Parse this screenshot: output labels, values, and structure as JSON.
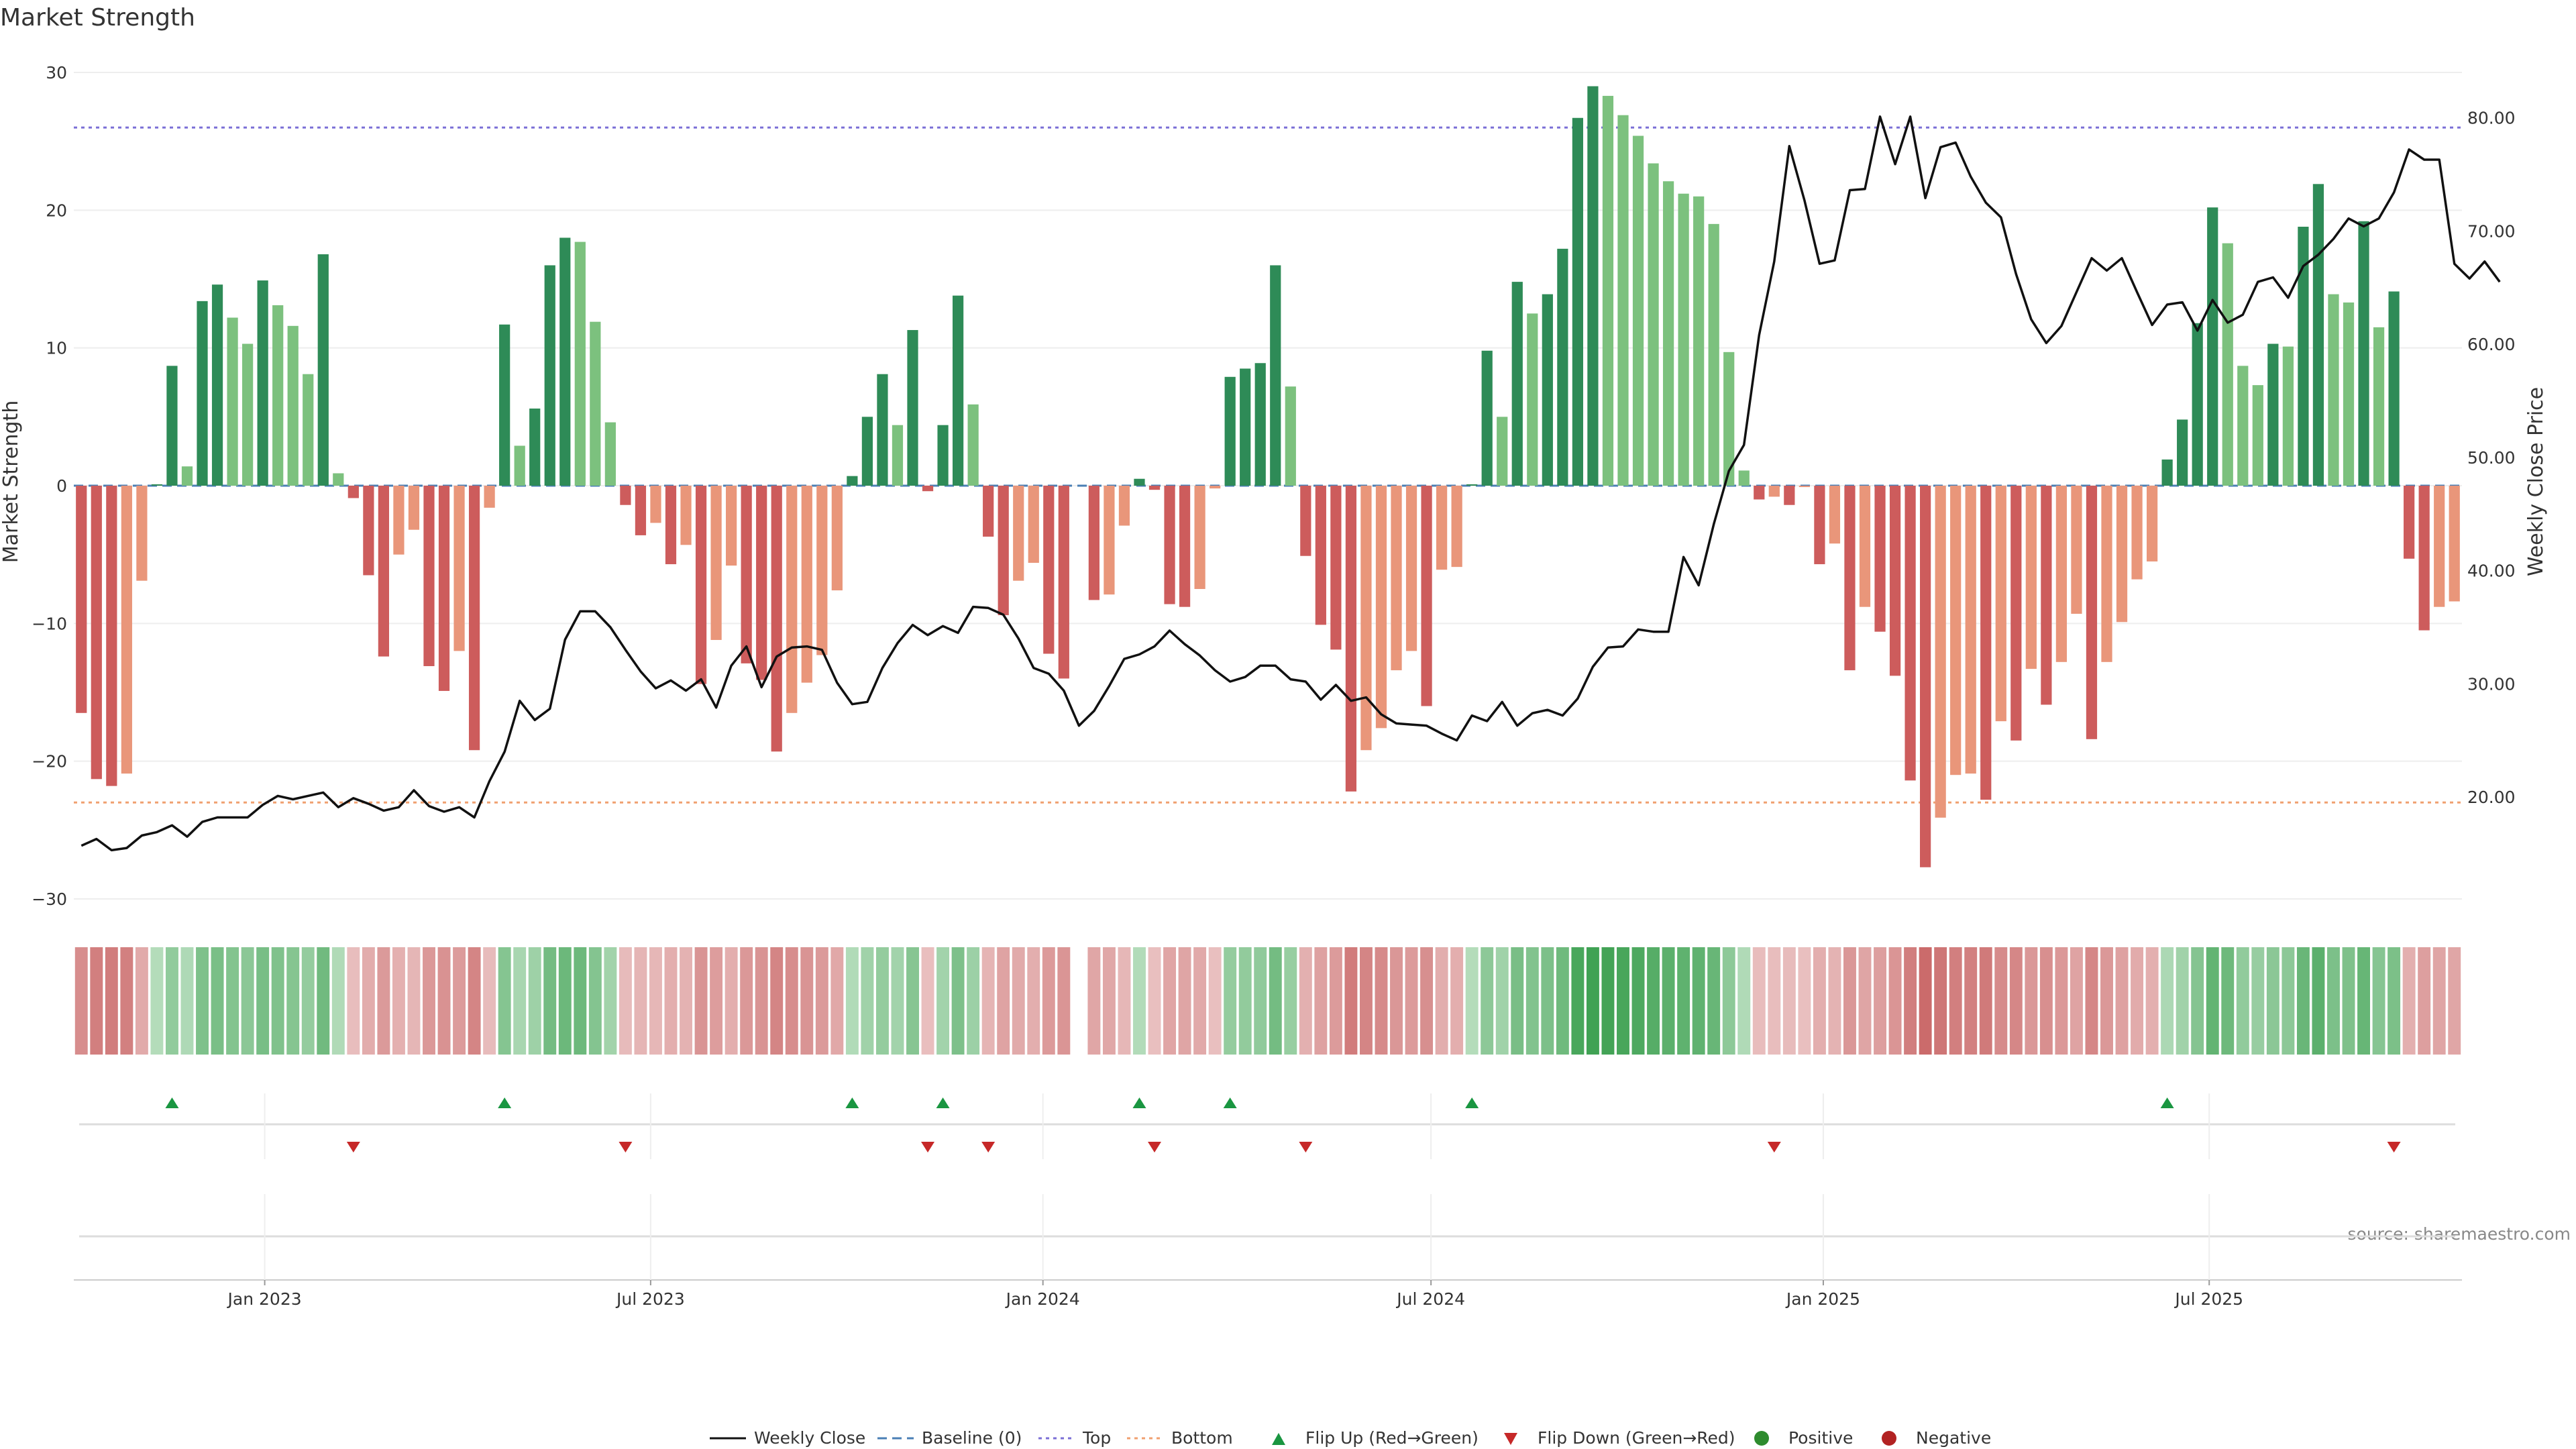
{
  "chart_data": {
    "title": "Market Strength",
    "type": "bar+line",
    "ylabel_left": "Market Strength",
    "ylabel_right": "Weekly Close Price",
    "ylim_left": [
      -30,
      30
    ],
    "ylim_right": [
      11,
      84
    ],
    "yticks_left": [
      30,
      20,
      10,
      0,
      -10,
      -20,
      -30
    ],
    "yticks_right": [
      "80.00",
      "70.00",
      "60.00",
      "50.00",
      "40.00",
      "30.00",
      "20.00"
    ],
    "yticks_right_values": [
      80,
      70,
      60,
      50,
      40,
      30,
      20
    ],
    "x_start": "2022-10-07",
    "x_end": "2025-10-24",
    "xticks": [
      {
        "date": "2023-01-01",
        "label": "Jan 2023"
      },
      {
        "date": "2023-07-01",
        "label": "Jul 2023"
      },
      {
        "date": "2024-01-01",
        "label": "Jan 2024"
      },
      {
        "date": "2024-07-01",
        "label": "Jul 2024"
      },
      {
        "date": "2025-01-01",
        "label": "Jan 2025"
      },
      {
        "date": "2025-07-01",
        "label": "Jul 2025"
      }
    ],
    "top_line": 26,
    "bottom_line": -23,
    "weekly_close": [
      15.7,
      16.3,
      15.3,
      15.5,
      16.6,
      16.9,
      17.5,
      16.5,
      17.8,
      18.2,
      18.2,
      18.2,
      19.3,
      20.1,
      19.8,
      20.1,
      20.4,
      19.1,
      19.9,
      19.4,
      18.8,
      19.1,
      20.6,
      19.2,
      18.7,
      19.1,
      18.2,
      21.4,
      24.0,
      28.5,
      26.8,
      27.8,
      33.9,
      36.4,
      36.4,
      35.0,
      33.0,
      31.1,
      29.6,
      30.3,
      29.4,
      30.4,
      27.9,
      31.6,
      33.3,
      29.7,
      32.4,
      33.2,
      33.3,
      33.0,
      30.1,
      28.2,
      28.4,
      31.4,
      33.6,
      35.2,
      34.3,
      35.1,
      34.5,
      36.8,
      36.7,
      36.1,
      34.0,
      31.4,
      30.9,
      29.4,
      26.3,
      27.6,
      29.8,
      32.2,
      32.6,
      33.3,
      34.7,
      33.5,
      32.5,
      31.2,
      30.2,
      30.6,
      31.6,
      31.6,
      30.4,
      30.2,
      28.6,
      29.9,
      28.5,
      28.8,
      27.3,
      26.5,
      26.4,
      26.3,
      25.6,
      25.0,
      27.2,
      26.7,
      28.4,
      26.3,
      27.4,
      27.7,
      27.2,
      28.7,
      31.5,
      33.2,
      33.3,
      34.8,
      34.6,
      34.6,
      41.2,
      38.7,
      44.1,
      48.8,
      51.1,
      60.8,
      67.3,
      77.5,
      72.7,
      67.1,
      67.4,
      73.6,
      73.7,
      80.1,
      75.9,
      80.1,
      72.9,
      77.4,
      77.8,
      74.8,
      72.5,
      71.2,
      66.2,
      62.2,
      60.1,
      61.6,
      64.6,
      67.6,
      66.5,
      67.6,
      64.6,
      61.7,
      63.5,
      63.7,
      61.2,
      63.9,
      61.9,
      62.6,
      65.5,
      65.9,
      64.1,
      66.9,
      67.9,
      69.3,
      71.1,
      70.4,
      71.1,
      73.4,
      77.2,
      76.3,
      76.3,
      67.1,
      65.8,
      67.3,
      65.5
    ],
    "strength": [
      -16.5,
      -21.3,
      -21.8,
      -20.9,
      -6.9,
      0.1,
      8.7,
      1.4,
      13.4,
      14.6,
      12.2,
      10.3,
      14.9,
      13.1,
      11.6,
      8.1,
      16.8,
      0.9,
      -0.9,
      -6.5,
      -12.4,
      -5.0,
      -3.2,
      -13.1,
      -14.9,
      -12.0,
      -19.2,
      -1.6,
      11.7,
      2.9,
      5.6,
      16.0,
      18.0,
      17.7,
      11.9,
      4.6,
      -1.4,
      -3.6,
      -2.7,
      -5.7,
      -4.3,
      -14.4,
      -11.2,
      -5.8,
      -12.9,
      -14.1,
      -19.3,
      -16.5,
      -14.3,
      -12.3,
      -7.6,
      0.7,
      5.0,
      8.1,
      4.4,
      11.3,
      -0.4,
      4.4,
      13.8,
      5.9,
      -3.7,
      -9.4,
      -6.9,
      -5.6,
      -12.2,
      -14.0,
      null,
      -8.3,
      -7.9,
      -2.9,
      0.5,
      -0.3,
      -8.6,
      -8.8,
      -7.5,
      -0.2,
      7.9,
      8.5,
      8.9,
      16.0,
      7.2,
      -5.1,
      -10.1,
      -11.9,
      -22.2,
      -19.2,
      -17.6,
      -13.4,
      -12.0,
      -16.0,
      -6.1,
      -5.9,
      0.1,
      9.8,
      5.0,
      14.8,
      12.5,
      13.9,
      17.2,
      26.7,
      29.0,
      28.3,
      26.9,
      25.4,
      23.4,
      22.1,
      21.2,
      21.0,
      19.0,
      9.7,
      1.1,
      -1.0,
      -0.8,
      -1.4,
      -0.1,
      -5.7,
      -4.2,
      -13.4,
      -8.8,
      -10.6,
      -13.8,
      -21.4,
      -27.7,
      -24.1,
      -21.0,
      -20.9,
      -22.8,
      -17.1,
      -18.5,
      -13.3,
      -15.9,
      -12.8,
      -9.3,
      -18.4,
      -12.8,
      -9.9,
      -6.8,
      -5.5,
      1.9,
      4.8,
      11.8,
      20.2,
      17.6,
      8.7,
      7.3,
      10.3,
      10.1,
      18.8,
      21.9,
      13.9,
      13.3,
      19.2,
      11.5,
      14.1,
      -5.3,
      -10.5,
      -8.8,
      -8.4
    ],
    "heat_row": [
      -16.5,
      -21.3,
      -21.8,
      -20.9,
      -6.9,
      0.1,
      8.7,
      1.4,
      13.4,
      14.6,
      12.2,
      10.3,
      14.9,
      13.1,
      11.6,
      8.1,
      16.8,
      0.9,
      -0.9,
      -6.5,
      -12.4,
      -5.0,
      -3.2,
      -13.1,
      -14.9,
      -12.0,
      -19.2,
      -1.6,
      11.7,
      2.9,
      5.6,
      16.0,
      18.0,
      17.7,
      11.9,
      4.6,
      -1.4,
      -3.6,
      -2.7,
      -5.7,
      -4.3,
      -14.4,
      -11.2,
      -5.8,
      -12.9,
      -14.1,
      -19.3,
      -16.5,
      -14.3,
      -12.3,
      -7.6,
      0.7,
      5.0,
      8.1,
      4.4,
      11.3,
      -0.4,
      4.4,
      13.8,
      5.9,
      -3.7,
      -9.4,
      -6.9,
      -5.6,
      -12.2,
      -14.0,
      null,
      -8.3,
      -7.9,
      -2.9,
      0.5,
      -0.3,
      -8.6,
      -8.8,
      -7.5,
      -0.2,
      7.9,
      8.5,
      8.9,
      16.0,
      7.2,
      -5.1,
      -10.1,
      -11.9,
      -22.2,
      -19.2,
      -17.6,
      -13.4,
      -12.0,
      -16.0,
      -6.1,
      -5.9,
      0.1,
      9.8,
      5.0,
      14.8,
      12.5,
      13.9,
      17.2,
      26.7,
      29.0,
      28.3,
      26.9,
      25.4,
      23.4,
      22.1,
      21.2,
      21.0,
      19.0,
      9.7,
      1.1,
      -1.0,
      -0.8,
      -1.4,
      -0.1,
      -5.7,
      -4.2,
      -13.4,
      -8.8,
      -10.6,
      -13.8,
      -21.4,
      -27.7,
      -24.1,
      -21.0,
      -20.9,
      -22.8,
      -17.1,
      -18.5,
      -13.3,
      -15.9,
      -12.8,
      -9.3,
      -18.4,
      -12.8,
      -9.9,
      -6.8,
      -5.5,
      1.9,
      4.8,
      11.8,
      20.2,
      17.6,
      8.7,
      7.3,
      10.3,
      10.1,
      18.8,
      21.9,
      13.9,
      13.3,
      19.2,
      11.5,
      14.1,
      -5.3,
      -10.5,
      -8.8,
      -8.4
    ],
    "flip_up_idx": [
      6,
      28,
      51,
      57,
      70,
      76,
      92,
      138
    ],
    "flip_down_idx": [
      18,
      36,
      56,
      60,
      71,
      81,
      112,
      153
    ],
    "colors": {
      "strong_green": "#2e8b57",
      "light_green": "#7cc17e",
      "strong_red": "#cd5c5c",
      "light_red": "#e9967a",
      "close_line": "#111111",
      "top_line": "#7b6fd6",
      "bottom_line": "#f0a070",
      "flip_up": "#1a9641",
      "flip_down": "#c62828",
      "positive": "#2e8b2e",
      "negative": "#b22222"
    },
    "legend": [
      {
        "key": "close",
        "label": "Weekly Close"
      },
      {
        "key": "baseline",
        "label": "Baseline (0)"
      },
      {
        "key": "top",
        "label": "Top"
      },
      {
        "key": "bottom",
        "label": "Bottom"
      },
      {
        "key": "flip_up",
        "label": "Flip Up (Red→Green)"
      },
      {
        "key": "flip_down",
        "label": "Flip Down (Green→Red)"
      },
      {
        "key": "positive",
        "label": "Positive"
      },
      {
        "key": "negative",
        "label": "Negative"
      }
    ],
    "legend_position": "bottom-center"
  },
  "source_text": "source: sharemaestro.com"
}
